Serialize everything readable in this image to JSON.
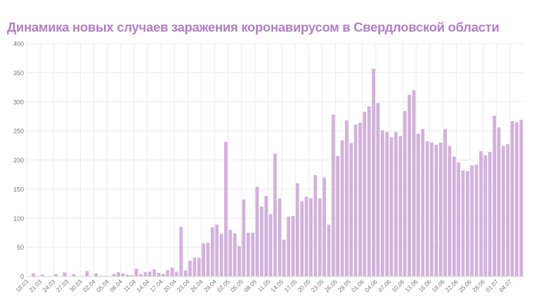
{
  "chart_data": {
    "type": "bar",
    "title": "Динамика новых случаев заражения коронавирусом в Свердловской области",
    "xlabel": "",
    "ylabel": "",
    "ylim": [
      0,
      400
    ],
    "yticks": [
      "0",
      "50",
      "100",
      "150",
      "200",
      "250",
      "300",
      "350",
      "400"
    ],
    "grid": true,
    "bar_color": "#d3b1dc",
    "start_date": "18.03",
    "label_every": 3,
    "categories": [
      "18.03",
      "19.03",
      "20.03",
      "21.03",
      "22.03",
      "23.03",
      "24.03",
      "25.03",
      "26.03",
      "27.03",
      "28.03",
      "29.03",
      "30.03",
      "31.03",
      "01.04",
      "02.04",
      "03.04",
      "04.04",
      "05.04",
      "06.04",
      "07.04",
      "08.04",
      "09.04",
      "10.04",
      "11.04",
      "12.04",
      "13.04",
      "14.04",
      "15.04",
      "16.04",
      "17.04",
      "18.04",
      "19.04",
      "20.04",
      "21.04",
      "22.04",
      "23.04",
      "24.04",
      "25.04",
      "26.04",
      "27.04",
      "28.04",
      "29.04",
      "30.04",
      "01.05",
      "02.05",
      "03.05",
      "04.05",
      "05.05",
      "06.05",
      "07.05",
      "08.05",
      "09.05",
      "10.05",
      "11.05",
      "12.05",
      "13.05",
      "14.05",
      "15.05",
      "16.05",
      "17.05",
      "18.05",
      "19.05",
      "20.05",
      "21.05",
      "22.05",
      "23.05",
      "24.05",
      "25.05",
      "26.05",
      "27.05",
      "28.05",
      "29.05",
      "30.05",
      "31.05",
      "01.06",
      "02.06",
      "03.06",
      "04.06",
      "05.06",
      "06.06",
      "07.06",
      "08.06",
      "09.06",
      "10.06",
      "11.06",
      "12.06",
      "13.06",
      "14.06",
      "15.06",
      "16.06",
      "17.06",
      "18.06",
      "19.06",
      "20.06",
      "21.06",
      "22.06",
      "23.06",
      "24.06",
      "25.06",
      "26.06",
      "27.06",
      "28.06",
      "29.06",
      "30.06",
      "01.07",
      "02.07",
      "03.07",
      "04.07",
      "05.07",
      "06.07"
    ],
    "values": [
      0,
      5,
      0,
      3,
      0,
      0,
      4,
      0,
      7,
      0,
      4,
      0,
      0,
      9,
      0,
      5,
      1,
      1,
      0,
      4,
      7,
      5,
      3,
      2,
      13,
      4,
      7,
      8,
      12,
      6,
      4,
      11,
      15,
      8,
      85,
      10,
      27,
      32,
      32,
      57,
      58,
      84,
      89,
      73,
      231,
      80,
      74,
      52,
      132,
      75,
      75,
      154,
      120,
      138,
      107,
      211,
      134,
      63,
      103,
      104,
      160,
      129,
      137,
      134,
      174,
      134,
      170,
      89,
      278,
      207,
      234,
      268,
      229,
      261,
      264,
      283,
      292,
      357,
      298,
      251,
      248,
      239,
      248,
      241,
      284,
      312,
      320,
      245,
      253,
      232,
      230,
      226,
      230,
      253,
      224,
      206,
      196,
      182,
      181,
      191,
      192,
      215,
      208,
      214,
      276,
      256,
      224,
      227,
      267,
      265,
      269
    ]
  }
}
